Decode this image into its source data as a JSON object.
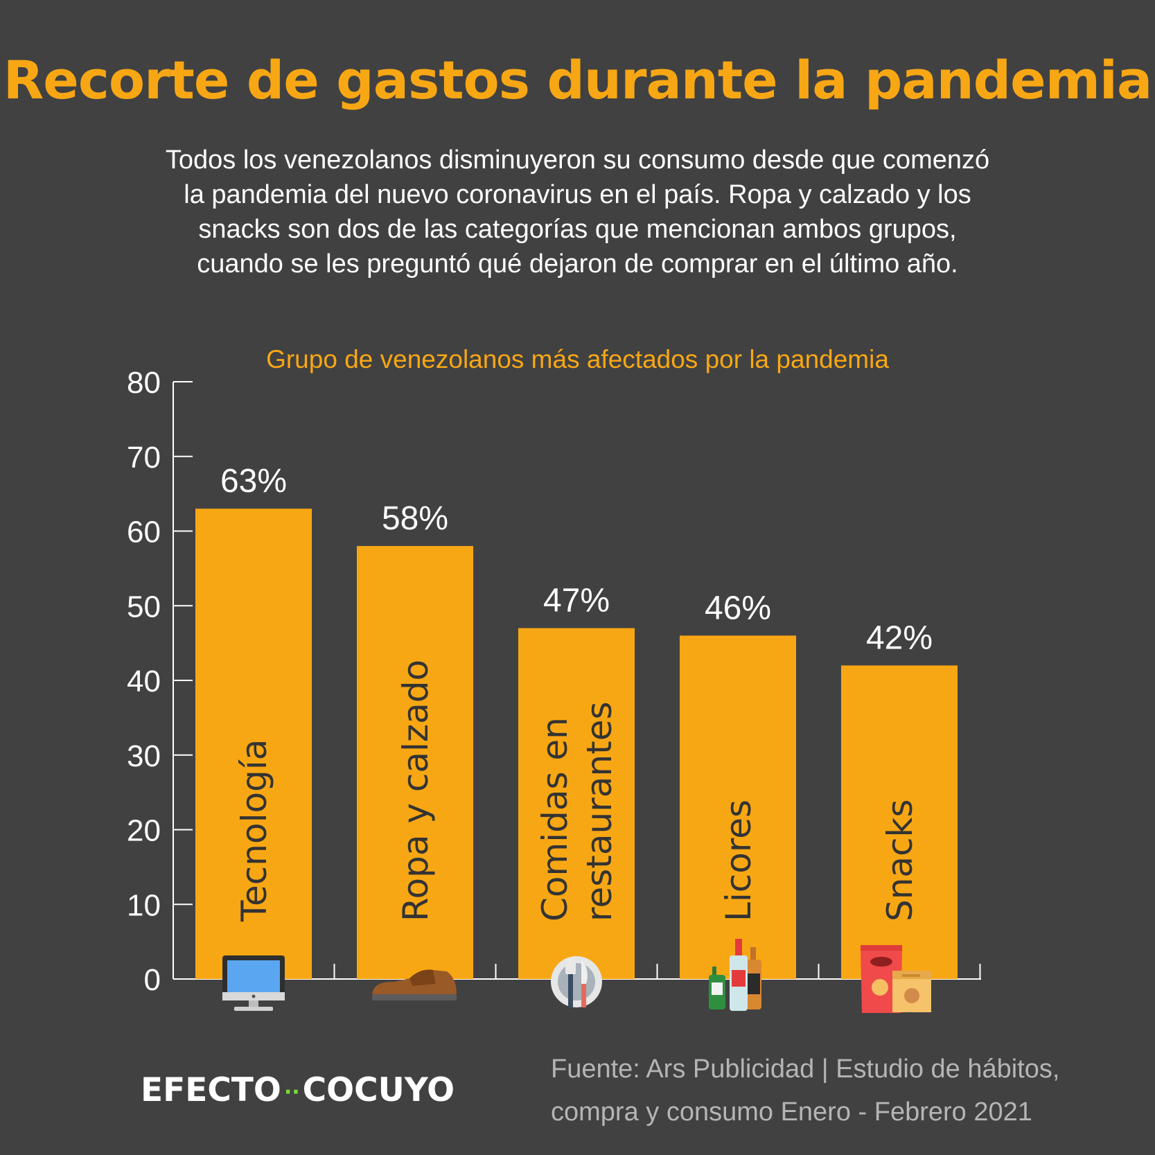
{
  "title": "Recorte de gastos durante la pandemia",
  "subtitle": "Todos los venezolanos disminuyeron su consumo desde que comenzó la pandemia del nuevo coronavirus en el país. Ropa y calzado y los snacks son dos de las categorías que mencionan ambos grupos, cuando se les preguntó qué dejaron de comprar en el último año.",
  "brand": {
    "left": "EFECTO",
    "dots": "··",
    "right": "COCUYO"
  },
  "source": "Fuente: Ars Publicidad | Estudio de hábitos, compra y consumo Enero - Febrero 2021",
  "colors": {
    "background": "#414141",
    "bar": "#f8a714",
    "accent": "#f8a714",
    "axis": "#ffffff"
  },
  "chart_data": {
    "type": "bar",
    "title": "Grupo de venezolanos más afectados por la pandemia",
    "xlabel": "",
    "ylabel": "",
    "ylim": [
      0,
      80
    ],
    "yticks": [
      0,
      10,
      20,
      30,
      40,
      50,
      60,
      70,
      80
    ],
    "grid": false,
    "legend": "none",
    "categories": [
      "Tecnología",
      "Ropa y calzado",
      "Comidas en restaurantes",
      "Licores",
      "Snacks"
    ],
    "category_lines": [
      [
        "Tecnología"
      ],
      [
        "Ropa y calzado"
      ],
      [
        "Comidas en",
        "restaurantes"
      ],
      [
        "Licores"
      ],
      [
        "Snacks"
      ]
    ],
    "values": [
      63,
      58,
      47,
      46,
      42
    ],
    "value_labels": [
      "63%",
      "58%",
      "47%",
      "46%",
      "42%"
    ],
    "icons": [
      "computer-monitor-icon",
      "shoe-icon",
      "plate-cutlery-icon",
      "liquor-bottles-icon",
      "snacks-bag-icon"
    ]
  }
}
